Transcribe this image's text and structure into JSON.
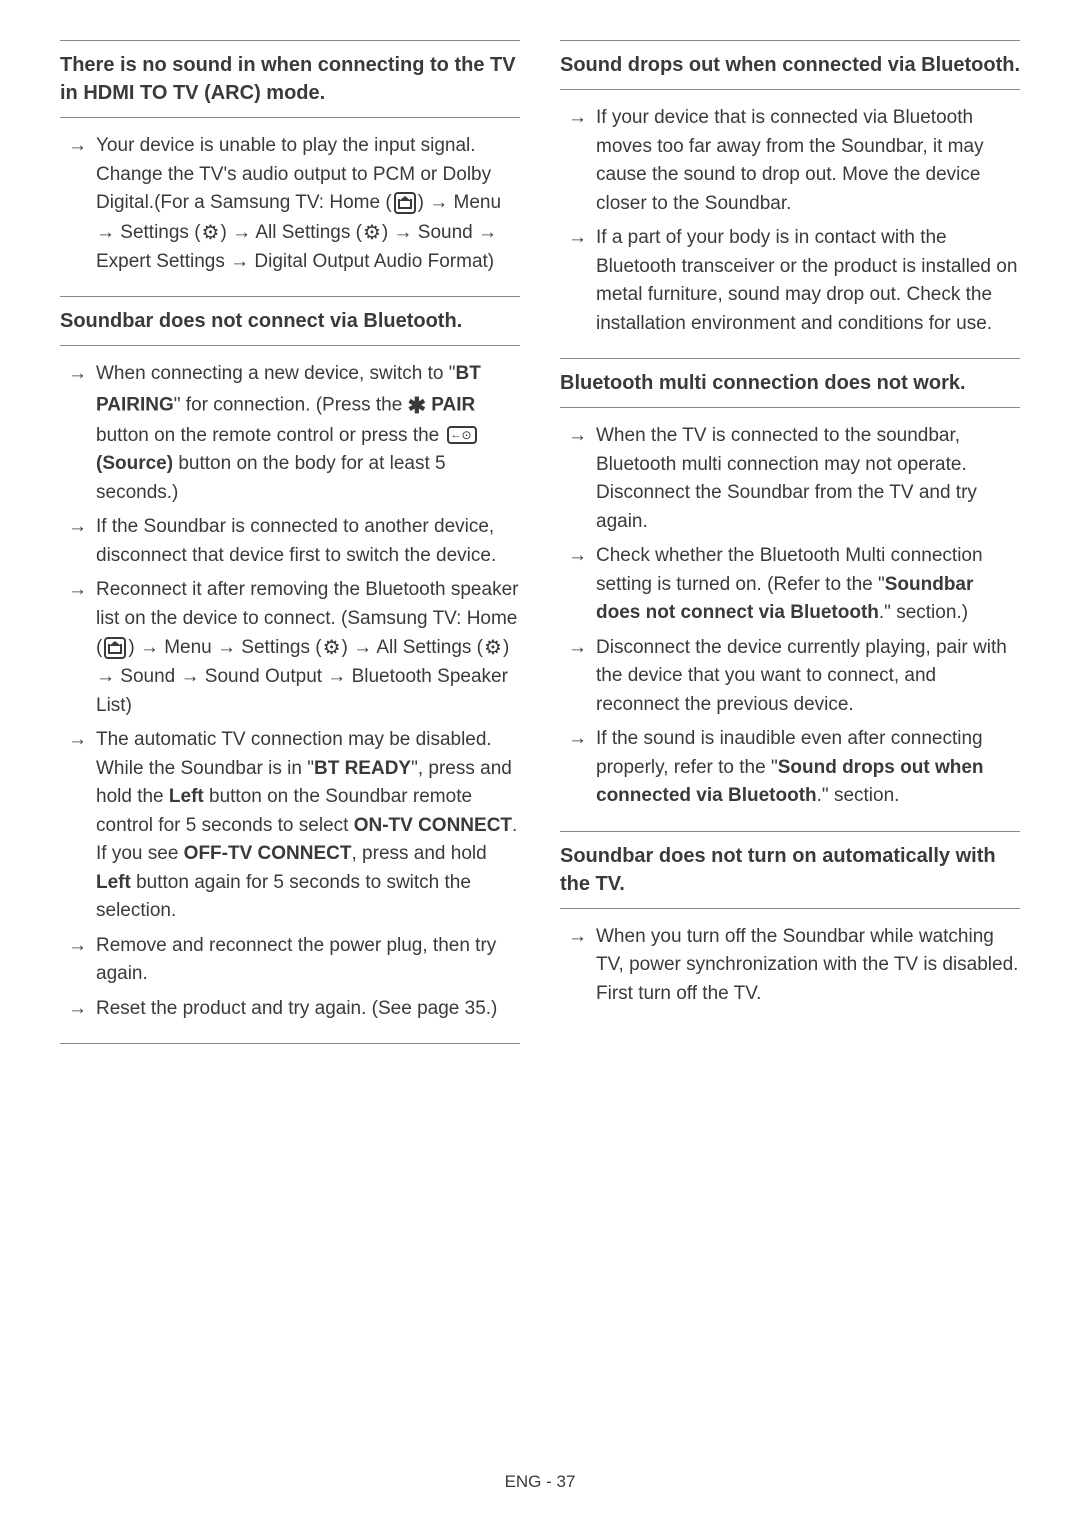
{
  "left_column": {
    "sections": [
      {
        "heading": "There is no sound in when connecting to the TV in HDMI TO TV (ARC) mode.",
        "items": [
          {
            "text_parts": [
              "Your device is unable to play the input signal. Change the TV's audio output to PCM or Dolby Digital.",
              "(For a Samsung TV: Home (",
              {
                "icon": "home"
              },
              ") → Menu → Settings (",
              {
                "icon": "gear"
              },
              ") → All Settings (",
              {
                "icon": "gear"
              },
              ") → Sound → Expert Settings → Digital Output Audio Format)"
            ]
          }
        ]
      },
      {
        "heading": "Soundbar does not connect via Bluetooth.",
        "items": [
          {
            "text_parts": [
              "When connecting a new device, switch to \"",
              {
                "bold": "BT PAIRING"
              },
              "\" for connection. (Press the ",
              {
                "icon": "bt"
              },
              " ",
              {
                "bold": "PAIR"
              },
              " button on the remote control or press the ",
              {
                "icon": "source"
              },
              " ",
              {
                "bold": "(Source)"
              },
              " button on the body for at least 5 seconds.)"
            ]
          },
          {
            "text_parts": [
              "If the Soundbar is connected to another device, disconnect that device first to switch the device."
            ]
          },
          {
            "text_parts": [
              "Reconnect it after removing the Bluetooth speaker list on the device to connect. (Samsung TV: Home (",
              {
                "icon": "home"
              },
              ") → Menu → Settings (",
              {
                "icon": "gear"
              },
              ") → All Settings (",
              {
                "icon": "gear"
              },
              ") → Sound → Sound Output → Bluetooth Speaker List)"
            ]
          },
          {
            "text_parts": [
              "The automatic TV connection may be disabled. While the Soundbar is in \"",
              {
                "bold": "BT READY"
              },
              "\", press and hold the ",
              {
                "bold": "Left"
              },
              " button on the Soundbar remote control for 5 seconds to select ",
              {
                "bold": "ON-TV CONNECT"
              },
              ". If you see ",
              {
                "bold": "OFF-TV CONNECT"
              },
              ", press and hold ",
              {
                "bold": "Left"
              },
              " button again for 5 seconds to switch the selection."
            ]
          },
          {
            "text_parts": [
              "Remove and reconnect the power plug, then try again."
            ]
          },
          {
            "text_parts": [
              "Reset the product and try again. (See page 35.)"
            ]
          }
        ],
        "last_in_column": true
      }
    ]
  },
  "right_column": {
    "sections": [
      {
        "heading": "Sound drops out when connected via Bluetooth.",
        "items": [
          {
            "text_parts": [
              "If your device that is connected via Bluetooth moves too far away from the Soundbar, it may cause the sound to drop out. Move the device closer to the Soundbar."
            ]
          },
          {
            "text_parts": [
              "If a part of your body is in contact with the Bluetooth transceiver or the product is installed on metal furniture, sound may drop out. Check the installation environment and conditions for use."
            ]
          }
        ]
      },
      {
        "heading": "Bluetooth multi connection does not work.",
        "items": [
          {
            "text_parts": [
              "When the TV is connected to the soundbar, Bluetooth multi connection may not operate. Disconnect the Soundbar from the TV and try again."
            ]
          },
          {
            "text_parts": [
              "Check whether the Bluetooth Multi connection setting is turned on. (Refer to the \"",
              {
                "bold": "Soundbar does not connect via Bluetooth"
              },
              ".\" section.)"
            ]
          },
          {
            "text_parts": [
              "Disconnect the device currently playing, pair with the device that you want to connect, and reconnect the previous device."
            ]
          },
          {
            "text_parts": [
              "If the sound is inaudible even after connecting properly, refer to the \"",
              {
                "bold": "Sound drops out when connected via Bluetooth"
              },
              ".\" section."
            ]
          }
        ]
      },
      {
        "heading": "Soundbar does not turn on automatically with the TV.",
        "items": [
          {
            "text_parts": [
              "When you turn off the Soundbar while watching TV, power synchronization with the TV is disabled. First turn off the TV."
            ]
          }
        ]
      }
    ]
  },
  "footer": "ENG - 37"
}
